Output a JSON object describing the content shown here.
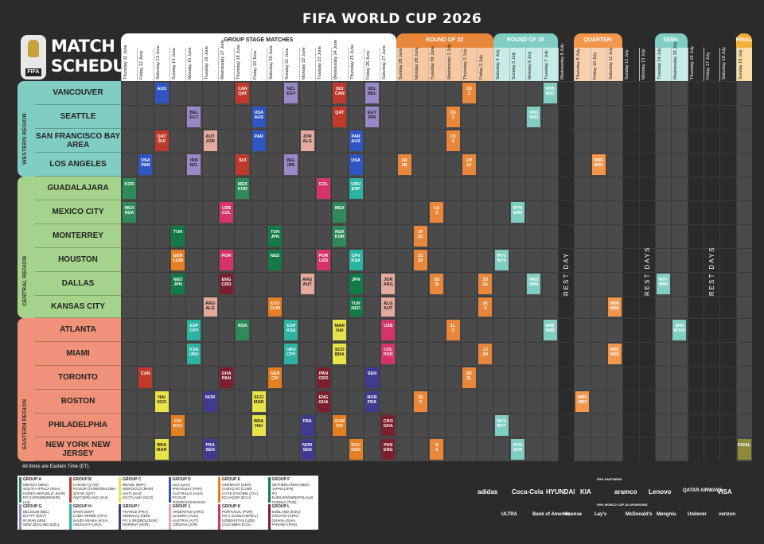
{
  "header": {
    "title": "FIFA WORLD CUP 2026",
    "logo_label": "FIFA",
    "schedule_title_1": "MATCH",
    "schedule_title_2": "SCHEDULE"
  },
  "phases": [
    "GROUP STAGE MATCHES",
    "ROUND OF 32",
    "ROUND OF 16",
    "QUARTER-FINALS",
    "SEMI-FINALS",
    "FINAL"
  ],
  "dates": [
    "Thursday 11 June",
    "Friday 12 June",
    "Saturday 13 June",
    "Sunday 14 June",
    "Monday 15 June",
    "Tuesday 16 June",
    "Wednesday 17 June",
    "Thursday 18 June",
    "Friday 19 June",
    "Saturday 20 June",
    "Sunday 21 June",
    "Monday 22 June",
    "Tuesday 23 June",
    "Wednesday 24 June",
    "Thursday 25 June",
    "Friday 26 June",
    "Saturday 27 June",
    "Sunday 28 June",
    "Monday 29 June",
    "Tuesday 30 June",
    "Wednesday 1 July",
    "Thursday 2 July",
    "Friday 3 July",
    "Saturday 4 July",
    "Sunday 5 July",
    "Monday 6 July",
    "Tuesday 7 July",
    "Wednesday 8 July",
    "Thursday 9 July",
    "Friday 10 July",
    "Saturday 11 July",
    "Sunday 12 July",
    "Monday 13 July",
    "Tuesday 14 July",
    "Wednesday 15 July",
    "Thursday 16 July",
    "Friday 17 July",
    "Saturday 18 July",
    "Sunday 19 July"
  ],
  "regions": [
    "WESTERN REGION",
    "CENTRAL REGION",
    "EASTERN REGION"
  ],
  "cities": [
    "VANCOUVER",
    "SEATTLE",
    "SAN FRANCISCO BAY AREA",
    "LOS ANGELES",
    "GUADALAJARA",
    "MEXICO CITY",
    "MONTERREY",
    "HOUSTON",
    "DALLAS",
    "KANSAS CITY",
    "ATLANTA",
    "MIAMI",
    "TORONTO",
    "BOSTON",
    "PHILADELPHIA",
    "NEW YORK NEW JERSEY"
  ],
  "rest_label": "REST DAY",
  "rest_days_label": "REST DAYS",
  "matches": [
    {
      "row": 0,
      "col": 2,
      "t1": "AUS",
      "t2": ""
    },
    {
      "row": 0,
      "col": 7,
      "t1": "CAN",
      "t2": "QAT"
    },
    {
      "row": 0,
      "col": 10,
      "t1": "NZL",
      "t2": "EGY"
    },
    {
      "row": 0,
      "col": 13,
      "t1": "SUI",
      "t2": "CAN"
    },
    {
      "row": 0,
      "col": 15,
      "t1": "NZL",
      "t2": "BEL"
    },
    {
      "row": 0,
      "col": 21,
      "t1": "1B",
      "t2": "3"
    },
    {
      "row": 0,
      "col": 26,
      "t1": "W85",
      "t2": "W87"
    },
    {
      "row": 1,
      "col": 4,
      "t1": "BEL",
      "t2": "EGY"
    },
    {
      "row": 1,
      "col": 8,
      "t1": "USA",
      "t2": "AUS"
    },
    {
      "row": 1,
      "col": 13,
      "t1": "",
      "t2": "QAT"
    },
    {
      "row": 1,
      "col": 15,
      "t1": "EGY",
      "t2": "IRN"
    },
    {
      "row": 1,
      "col": 20,
      "t1": "1G",
      "t2": "3"
    },
    {
      "row": 1,
      "col": 25,
      "t1": "W81",
      "t2": "W82"
    },
    {
      "row": 2,
      "col": 2,
      "t1": "QAT",
      "t2": "SUI"
    },
    {
      "row": 2,
      "col": 5,
      "t1": "AUT",
      "t2": "JOR"
    },
    {
      "row": 2,
      "col": 8,
      "t1": "",
      "t2": "PAR"
    },
    {
      "row": 2,
      "col": 11,
      "t1": "JOR",
      "t2": "ALG"
    },
    {
      "row": 2,
      "col": 14,
      "t1": "PAR",
      "t2": "AUS"
    },
    {
      "row": 2,
      "col": 20,
      "t1": "1D",
      "t2": "3"
    },
    {
      "row": 3,
      "col": 1,
      "t1": "USA",
      "t2": "PAR"
    },
    {
      "row": 3,
      "col": 4,
      "t1": "IRN",
      "t2": "NZL"
    },
    {
      "row": 3,
      "col": 7,
      "t1": "SUI",
      "t2": ""
    },
    {
      "row": 3,
      "col": 10,
      "t1": "BEL",
      "t2": "IRN"
    },
    {
      "row": 3,
      "col": 14,
      "t1": "",
      "t2": "USA"
    },
    {
      "row": 3,
      "col": 17,
      "t1": "2A",
      "t2": "2B"
    },
    {
      "row": 3,
      "col": 21,
      "t1": "1H",
      "t2": "2J"
    },
    {
      "row": 3,
      "col": 29,
      "t1": "W93",
      "t2": "W94"
    },
    {
      "row": 4,
      "col": 0,
      "t1": "KOR",
      "t2": ""
    },
    {
      "row": 4,
      "col": 7,
      "t1": "MEX",
      "t2": "KOR"
    },
    {
      "row": 4,
      "col": 12,
      "t1": "COL",
      "t2": ""
    },
    {
      "row": 4,
      "col": 14,
      "t1": "URU",
      "t2": "ESP"
    },
    {
      "row": 5,
      "col": 0,
      "t1": "MEX",
      "t2": "RSA"
    },
    {
      "row": 5,
      "col": 6,
      "t1": "UZB",
      "t2": "COL"
    },
    {
      "row": 5,
      "col": 13,
      "t1": "",
      "t2": "MEX"
    },
    {
      "row": 5,
      "col": 19,
      "t1": "1A",
      "t2": "3"
    },
    {
      "row": 5,
      "col": 24,
      "t1": "W79",
      "t2": "W80"
    },
    {
      "row": 6,
      "col": 3,
      "t1": "",
      "t2": "TUN"
    },
    {
      "row": 6,
      "col": 9,
      "t1": "TUN",
      "t2": "JPN"
    },
    {
      "row": 6,
      "col": 13,
      "t1": "RSA",
      "t2": "KOR"
    },
    {
      "row": 6,
      "col": 18,
      "t1": "1F",
      "t2": "2C"
    },
    {
      "row": 7,
      "col": 3,
      "t1": "GER",
      "t2": "CUW"
    },
    {
      "row": 7,
      "col": 6,
      "t1": "POR",
      "t2": ""
    },
    {
      "row": 7,
      "col": 9,
      "t1": "NED",
      "t2": ""
    },
    {
      "row": 7,
      "col": 12,
      "t1": "POR",
      "t2": "UZB"
    },
    {
      "row": 7,
      "col": 14,
      "t1": "CPV",
      "t2": "KSA"
    },
    {
      "row": 7,
      "col": 18,
      "t1": "1C",
      "t2": "2F"
    },
    {
      "row": 7,
      "col": 23,
      "t1": "W73",
      "t2": "W75"
    },
    {
      "row": 8,
      "col": 3,
      "t1": "NED",
      "t2": "JPN"
    },
    {
      "row": 8,
      "col": 6,
      "t1": "ENG",
      "t2": "CRO"
    },
    {
      "row": 8,
      "col": 11,
      "t1": "ARG",
      "t2": "AUT"
    },
    {
      "row": 8,
      "col": 14,
      "t1": "JPN",
      "t2": ""
    },
    {
      "row": 8,
      "col": 16,
      "t1": "JOR",
      "t2": "ARG"
    },
    {
      "row": 8,
      "col": 19,
      "t1": "2E",
      "t2": "2I"
    },
    {
      "row": 8,
      "col": 22,
      "t1": "2D",
      "t2": "2G"
    },
    {
      "row": 8,
      "col": 25,
      "t1": "W83",
      "t2": "W84"
    },
    {
      "row": 8,
      "col": 33,
      "t1": "W97",
      "t2": "W98"
    },
    {
      "row": 9,
      "col": 5,
      "t1": "ARG",
      "t2": "ALG"
    },
    {
      "row": 9,
      "col": 9,
      "t1": "ECU",
      "t2": "CUW"
    },
    {
      "row": 9,
      "col": 14,
      "t1": "TUN",
      "t2": "NED"
    },
    {
      "row": 9,
      "col": 16,
      "t1": "ALG",
      "t2": "AUT"
    },
    {
      "row": 9,
      "col": 22,
      "t1": "1K",
      "t2": "3"
    },
    {
      "row": 9,
      "col": 30,
      "t1": "W95",
      "t2": "W96"
    },
    {
      "row": 10,
      "col": 4,
      "t1": "ESP",
      "t2": "CPV"
    },
    {
      "row": 10,
      "col": 7,
      "t1": "",
      "t2": "RSA"
    },
    {
      "row": 10,
      "col": 10,
      "t1": "ESP",
      "t2": "KSA"
    },
    {
      "row": 10,
      "col": 13,
      "t1": "MAR",
      "t2": "HAI"
    },
    {
      "row": 10,
      "col": 16,
      "t1": "",
      "t2": "UZB"
    },
    {
      "row": 10,
      "col": 20,
      "t1": "1L",
      "t2": "3"
    },
    {
      "row": 10,
      "col": 26,
      "t1": "W86",
      "t2": "W88"
    },
    {
      "row": 10,
      "col": 34,
      "t1": "W99",
      "t2": "W100"
    },
    {
      "row": 11,
      "col": 4,
      "t1": "KSA",
      "t2": "URU"
    },
    {
      "row": 11,
      "col": 10,
      "t1": "URU",
      "t2": "CPV"
    },
    {
      "row": 11,
      "col": 13,
      "t1": "SCO",
      "t2": "BRA"
    },
    {
      "row": 11,
      "col": 16,
      "t1": "COL",
      "t2": "POR"
    },
    {
      "row": 11,
      "col": 22,
      "t1": "1J",
      "t2": "2H"
    },
    {
      "row": 11,
      "col": 30,
      "t1": "W91",
      "t2": "W92"
    },
    {
      "row": 12,
      "col": 1,
      "t1": "CAN",
      "t2": ""
    },
    {
      "row": 12,
      "col": 6,
      "t1": "GHA",
      "t2": "PAN"
    },
    {
      "row": 12,
      "col": 9,
      "t1": "GER",
      "t2": "CIV"
    },
    {
      "row": 12,
      "col": 12,
      "t1": "PAN",
      "t2": "CRO"
    },
    {
      "row": 12,
      "col": 15,
      "t1": "SEN",
      "t2": ""
    },
    {
      "row": 12,
      "col": 21,
      "t1": "2K",
      "t2": "2L"
    },
    {
      "row": 13,
      "col": 2,
      "t1": "HAI",
      "t2": "SCO"
    },
    {
      "row": 13,
      "col": 5,
      "t1": "",
      "t2": "NOR"
    },
    {
      "row": 13,
      "col": 8,
      "t1": "SCO",
      "t2": "MAR"
    },
    {
      "row": 13,
      "col": 12,
      "t1": "ENG",
      "t2": "GHA"
    },
    {
      "row": 13,
      "col": 15,
      "t1": "NOR",
      "t2": "FRA"
    },
    {
      "row": 13,
      "col": 18,
      "t1": "1E",
      "t2": "3"
    },
    {
      "row": 13,
      "col": 28,
      "t1": "W89",
      "t2": "W90"
    },
    {
      "row": 14,
      "col": 3,
      "t1": "CIV",
      "t2": "ECU"
    },
    {
      "row": 14,
      "col": 8,
      "t1": "BRA",
      "t2": "HAI"
    },
    {
      "row": 14,
      "col": 11,
      "t1": "FRA",
      "t2": ""
    },
    {
      "row": 14,
      "col": 13,
      "t1": "CUW",
      "t2": "CIV"
    },
    {
      "row": 14,
      "col": 16,
      "t1": "CRO",
      "t2": "GHA"
    },
    {
      "row": 14,
      "col": 23,
      "t1": "W74",
      "t2": "W77"
    },
    {
      "row": 15,
      "col": 2,
      "t1": "BRA",
      "t2": "MAR"
    },
    {
      "row": 15,
      "col": 5,
      "t1": "FRA",
      "t2": "SEN"
    },
    {
      "row": 15,
      "col": 11,
      "t1": "NOR",
      "t2": "SEN"
    },
    {
      "row": 15,
      "col": 14,
      "t1": "ECU",
      "t2": "GER"
    },
    {
      "row": 15,
      "col": 16,
      "t1": "PAN",
      "t2": "ENG"
    },
    {
      "row": 15,
      "col": 19,
      "t1": "1I",
      "t2": "3"
    },
    {
      "row": 15,
      "col": 24,
      "t1": "W76",
      "t2": "W78"
    }
  ],
  "final_label": "FINAL",
  "footnote": "All times are Eastern Time (ET).",
  "groups": [
    {
      "name": "GROUP A",
      "teams": [
        "MEXICO (MEX)",
        "SOUTH AFRICA (RSA)",
        "KOREA REPUBLIC (KOR)",
        "PO EUR/NMB/DEN/IRL (A4)"
      ],
      "color": "#2e8b57"
    },
    {
      "name": "GROUP B",
      "teams": [
        "CANADA (CAN)",
        "PO EUR ITA/NIR/WAL/BIH",
        "QATAR (QAT)",
        "SWITZERLAND (SUI)"
      ],
      "color": "#c0392b"
    },
    {
      "name": "GROUP C",
      "teams": [
        "BRAZIL (BRA)",
        "MOROCCO (MAR)",
        "HAITI (HAI)",
        "SCOTLAND (SCO)"
      ],
      "color": "#e9e24a"
    },
    {
      "name": "GROUP D",
      "teams": [
        "USA (USA)",
        "PARAGUAY (PAR)",
        "AUSTRALIA (AUS)",
        "PO EUR TUR/ROU/SVK/KOS"
      ],
      "color": "#2f54c4"
    },
    {
      "name": "GROUP E",
      "teams": [
        "GERMANY (GER)",
        "CURAÇAO (CUW)",
        "COTE D'IVOIRE (CIV)",
        "ECUADOR (ECU)"
      ],
      "color": "#e67e22"
    },
    {
      "name": "GROUP F",
      "teams": [
        "NETHERLANDS (NED)",
        "JAPAN (JPN)",
        "PO EUR/UKR/SWE/POL/ALB",
        "TUNISIA (TUN)"
      ],
      "color": "#127a44"
    },
    {
      "name": "GROUP G",
      "teams": [
        "BELGIUM (BEL)",
        "EGYPT (EGY)",
        "IR IRAN (IRN)",
        "NEW ZEALAND (NZL)"
      ],
      "color": "#9a89c9"
    },
    {
      "name": "GROUP H",
      "teams": [
        "SPAIN (ESP)",
        "CABO VERDE (CPV)",
        "SAUDI ARABIA (KSA)",
        "URUGUAY (URU)"
      ],
      "color": "#2bb3a3"
    },
    {
      "name": "GROUP I",
      "teams": [
        "FRANCE (FRA)",
        "SENEGAL (SEN)",
        "PO 2 (IRQ/BOL/SUR)",
        "NORWAY (NOR)"
      ],
      "color": "#3f3a8f"
    },
    {
      "name": "GROUP J",
      "teams": [
        "ARGENTINA (ARG)",
        "ALGERIA (ALG)",
        "AUSTRIA (AUT)",
        "JORDAN (JOR)"
      ],
      "color": "#e5a99e"
    },
    {
      "name": "GROUP K",
      "teams": [
        "PORTUGAL (POR)",
        "PO 1 (COD/JAM/NCL)",
        "UZBEKISTAN (UZB)",
        "COLOMBIA (COL)"
      ],
      "color": "#d6336c"
    },
    {
      "name": "GROUP L",
      "teams": [
        "ENGLAND (ENG)",
        "CROATIA (CRO)",
        "GHANA (GHA)",
        "PANAMA (PAN)"
      ],
      "color": "#7a1f2b"
    }
  ],
  "sponsors": [
    "adidas",
    "Coca-Cola",
    "HYUNDAI",
    "KIA",
    "aramco",
    "Lenovo",
    "QATAR AIRWAYS",
    "VISA",
    "ULTRA",
    "Bank of America",
    "Hisense",
    "Lay's",
    "McDonald's",
    "Mengniu",
    "Unilever",
    "verizon"
  ],
  "sponsor_headers": [
    "FIFA PARTNERS",
    "FIFA WORLD CUP 26 SPONSORS"
  ],
  "colors": {
    "western": "#7fcdc3",
    "central": "#a6d38b",
    "eastern": "#f0927a",
    "group": "#ffffff",
    "r32": "#e8873a",
    "r16": "#7fcdc3",
    "qf": "#f2964b",
    "sf": "#7fcdc3",
    "final": "#f2b036"
  }
}
